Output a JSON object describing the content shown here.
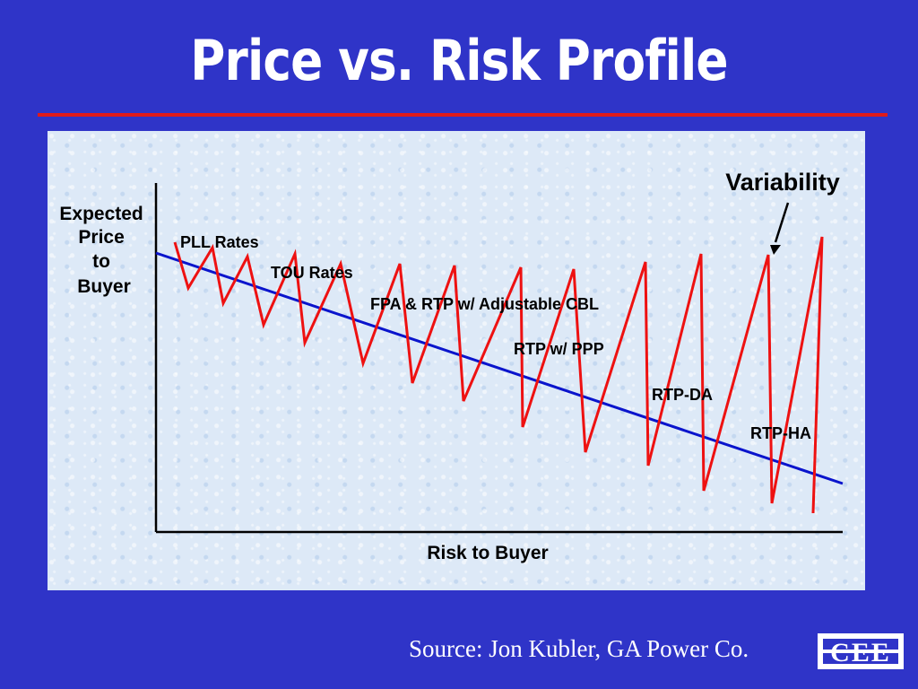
{
  "slide": {
    "title": "Price vs. Risk Profile",
    "source": "Source: Jon Kubler, GA Power Co."
  },
  "diagram": {
    "y_axis_label": [
      "Expected",
      "Price",
      "to",
      "Buyer"
    ],
    "x_axis_label": "Risk to Buyer",
    "variability_label": "Variability",
    "rate_labels": [
      "PLL Rates",
      "TOU Rates",
      "FPA & RTP w/ Adjustable CBL",
      "RTP w/ PPP",
      "RTP-DA",
      "RTP-HA"
    ],
    "trend_line_color": "#0a14cc",
    "variability_line_color": "#ee1111"
  },
  "logo": {
    "text": "CEE",
    "icon": "cee-logo-icon"
  }
}
